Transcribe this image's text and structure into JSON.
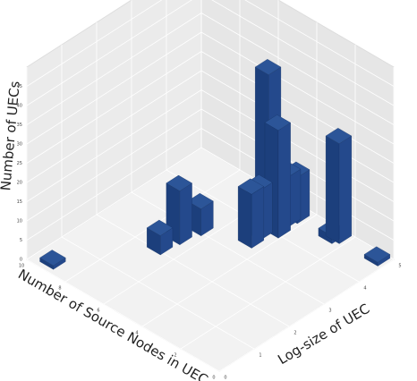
{
  "chart_data": {
    "type": "bar3d",
    "xlabel": "Number of Source Nodes in UEC",
    "ylabel": "Log-size of UEC",
    "zlabel": "Number of UECs",
    "color": "#1c3f7c",
    "xlim": [
      0,
      10
    ],
    "ylim": [
      0,
      5
    ],
    "zlim": [
      0,
      50
    ],
    "xticks": [
      0,
      2,
      4,
      6,
      8,
      10
    ],
    "yticks": [
      0,
      1,
      2,
      3,
      4,
      5
    ],
    "zticks": [
      0,
      5,
      10,
      15,
      20,
      25,
      30,
      35,
      40,
      45
    ],
    "grid": true,
    "x": [
      6.9,
      6.8,
      6.6,
      4.7,
      4.8,
      4.9,
      4.4,
      4.6,
      4.5,
      2.7,
      2.5,
      9.2,
      0.5
    ],
    "y": [
      2.1,
      2.6,
      3.1,
      3.5,
      3.8,
      4.1,
      4.1,
      4.5,
      4.7,
      4.7,
      4.8,
      0.3,
      4.8
    ],
    "z": [
      5,
      14,
      7,
      14,
      13,
      41,
      28,
      13,
      12,
      2,
      26,
      1,
      1
    ]
  }
}
